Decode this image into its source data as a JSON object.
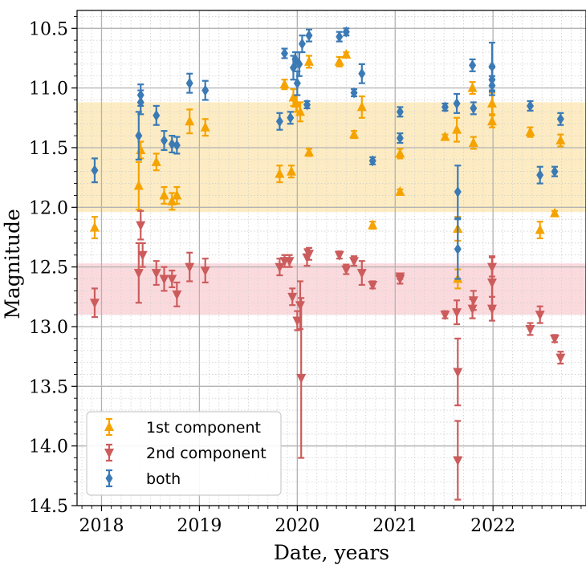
{
  "chart_data": {
    "type": "scatter",
    "xlabel": "Date, years",
    "ylabel": "Magnitude",
    "xlim": [
      2017.75,
      2022.95
    ],
    "ylim": [
      14.5,
      10.35
    ],
    "y_inverted": true,
    "x_ticks": [
      2018,
      2019,
      2020,
      2021,
      2022
    ],
    "x_tick_labels": [
      "2018",
      "2019",
      "2020",
      "2021",
      "2022"
    ],
    "y_ticks": [
      10.5,
      11.0,
      11.5,
      12.0,
      12.5,
      13.0,
      13.5,
      14.0,
      14.5
    ],
    "y_tick_labels": [
      "10.5",
      "11.0",
      "11.5",
      "12.0",
      "12.5",
      "13.0",
      "13.5",
      "14.0",
      "14.5"
    ],
    "grid": true,
    "legend_position": "lower-left",
    "bands": [
      {
        "name": "1st component range",
        "y_from": 11.12,
        "y_to": 12.04,
        "color": "#fde9b8"
      },
      {
        "name": "2nd component range",
        "y_from": 12.47,
        "y_to": 12.9,
        "color": "#fad4d8"
      }
    ],
    "series": [
      {
        "name": "1st component",
        "marker": "triangle-up",
        "color": "#f5a300",
        "points": [
          {
            "x": 2017.93,
            "y": 12.17,
            "err": 0.09
          },
          {
            "x": 2018.38,
            "y": 11.82,
            "err": 0.2
          },
          {
            "x": 2018.4,
            "y": 11.52,
            "err": 0.07
          },
          {
            "x": 2018.56,
            "y": 11.62,
            "err": 0.07
          },
          {
            "x": 2018.64,
            "y": 11.9,
            "err": 0.07
          },
          {
            "x": 2018.72,
            "y": 11.95,
            "err": 0.07
          },
          {
            "x": 2018.77,
            "y": 11.9,
            "err": 0.07
          },
          {
            "x": 2018.9,
            "y": 11.28,
            "err": 0.1
          },
          {
            "x": 2019.06,
            "y": 11.33,
            "err": 0.07
          },
          {
            "x": 2019.82,
            "y": 11.72,
            "err": 0.07
          },
          {
            "x": 2019.87,
            "y": 10.97,
            "err": 0.04
          },
          {
            "x": 2019.94,
            "y": 11.7,
            "err": 0.05
          },
          {
            "x": 2019.96,
            "y": 11.08,
            "err": 0.07
          },
          {
            "x": 2019.99,
            "y": 11.13,
            "err": 0.07
          },
          {
            "x": 2020.03,
            "y": 11.2,
            "err": 0.08
          },
          {
            "x": 2020.12,
            "y": 11.54,
            "err": 0.03
          },
          {
            "x": 2020.12,
            "y": 10.78,
            "err": 0.05
          },
          {
            "x": 2020.43,
            "y": 10.78,
            "err": 0.04
          },
          {
            "x": 2020.5,
            "y": 10.72,
            "err": 0.02
          },
          {
            "x": 2020.58,
            "y": 11.39,
            "err": 0.03
          },
          {
            "x": 2020.66,
            "y": 11.16,
            "err": 0.09
          },
          {
            "x": 2020.77,
            "y": 12.15,
            "err": 0.03
          },
          {
            "x": 2021.05,
            "y": 11.55,
            "err": 0.04
          },
          {
            "x": 2021.05,
            "y": 11.87,
            "err": 0.02
          },
          {
            "x": 2021.51,
            "y": 11.41,
            "err": 0.02
          },
          {
            "x": 2021.63,
            "y": 11.35,
            "err": 0.1
          },
          {
            "x": 2021.64,
            "y": 12.18,
            "err": 0.1
          },
          {
            "x": 2021.64,
            "y": 12.6,
            "err": 0.08
          },
          {
            "x": 2021.79,
            "y": 11.0,
            "err": 0.05
          },
          {
            "x": 2021.8,
            "y": 11.46,
            "err": 0.05
          },
          {
            "x": 2021.99,
            "y": 11.13,
            "err": 0.09
          },
          {
            "x": 2021.99,
            "y": 11.28,
            "err": 0.05
          },
          {
            "x": 2022.38,
            "y": 11.37,
            "err": 0.04
          },
          {
            "x": 2022.48,
            "y": 12.19,
            "err": 0.07
          },
          {
            "x": 2022.63,
            "y": 12.05,
            "err": 0.02
          },
          {
            "x": 2022.69,
            "y": 11.44,
            "err": 0.05
          }
        ]
      },
      {
        "name": "2nd component",
        "marker": "triangle-down",
        "color": "#cc5c5c",
        "points": [
          {
            "x": 2017.93,
            "y": 12.8,
            "err": 0.12
          },
          {
            "x": 2018.38,
            "y": 12.55,
            "err": 0.25
          },
          {
            "x": 2018.4,
            "y": 12.15,
            "err": 0.12
          },
          {
            "x": 2018.42,
            "y": 12.4,
            "err": 0.1
          },
          {
            "x": 2018.56,
            "y": 12.55,
            "err": 0.1
          },
          {
            "x": 2018.64,
            "y": 12.6,
            "err": 0.1
          },
          {
            "x": 2018.72,
            "y": 12.6,
            "err": 0.07
          },
          {
            "x": 2018.77,
            "y": 12.73,
            "err": 0.1
          },
          {
            "x": 2018.9,
            "y": 12.5,
            "err": 0.12
          },
          {
            "x": 2019.06,
            "y": 12.53,
            "err": 0.1
          },
          {
            "x": 2019.82,
            "y": 12.5,
            "err": 0.07
          },
          {
            "x": 2019.87,
            "y": 12.45,
            "err": 0.05
          },
          {
            "x": 2019.92,
            "y": 12.45,
            "err": 0.05
          },
          {
            "x": 2019.95,
            "y": 12.75,
            "err": 0.07
          },
          {
            "x": 2020.0,
            "y": 12.95,
            "err": 0.08
          },
          {
            "x": 2020.03,
            "y": 12.82,
            "err": 0.2
          },
          {
            "x": 2020.04,
            "y": 13.43,
            "err": 0.67
          },
          {
            "x": 2020.1,
            "y": 12.42,
            "err": 0.07
          },
          {
            "x": 2020.12,
            "y": 12.39,
            "err": 0.05
          },
          {
            "x": 2020.43,
            "y": 12.4,
            "err": 0.03
          },
          {
            "x": 2020.5,
            "y": 12.52,
            "err": 0.04
          },
          {
            "x": 2020.58,
            "y": 12.45,
            "err": 0.04
          },
          {
            "x": 2020.66,
            "y": 12.55,
            "err": 0.1
          },
          {
            "x": 2020.77,
            "y": 12.65,
            "err": 0.03
          },
          {
            "x": 2021.05,
            "y": 12.6,
            "err": 0.04
          },
          {
            "x": 2021.05,
            "y": 12.58,
            "err": 0.02
          },
          {
            "x": 2021.51,
            "y": 12.9,
            "err": 0.03
          },
          {
            "x": 2021.63,
            "y": 12.88,
            "err": 0.1
          },
          {
            "x": 2021.64,
            "y": 13.38,
            "err": 0.28
          },
          {
            "x": 2021.64,
            "y": 14.12,
            "err": 0.33
          },
          {
            "x": 2021.79,
            "y": 12.85,
            "err": 0.08
          },
          {
            "x": 2021.8,
            "y": 12.78,
            "err": 0.08
          },
          {
            "x": 2021.99,
            "y": 12.63,
            "err": 0.22
          },
          {
            "x": 2021.99,
            "y": 12.5,
            "err": 0.08
          },
          {
            "x": 2021.99,
            "y": 12.85,
            "err": 0.1
          },
          {
            "x": 2022.38,
            "y": 13.02,
            "err": 0.05
          },
          {
            "x": 2022.48,
            "y": 12.9,
            "err": 0.07
          },
          {
            "x": 2022.63,
            "y": 13.1,
            "err": 0.03
          },
          {
            "x": 2022.69,
            "y": 13.26,
            "err": 0.05
          }
        ]
      },
      {
        "name": "both",
        "marker": "diamond",
        "color": "#3b7ab5",
        "points": [
          {
            "x": 2017.93,
            "y": 11.69,
            "err": 0.1
          },
          {
            "x": 2018.38,
            "y": 11.4,
            "err": 0.2
          },
          {
            "x": 2018.4,
            "y": 11.06,
            "err": 0.09
          },
          {
            "x": 2018.4,
            "y": 11.12,
            "err": 0.1
          },
          {
            "x": 2018.56,
            "y": 11.23,
            "err": 0.08
          },
          {
            "x": 2018.64,
            "y": 11.44,
            "err": 0.08
          },
          {
            "x": 2018.72,
            "y": 11.47,
            "err": 0.07
          },
          {
            "x": 2018.77,
            "y": 11.48,
            "err": 0.07
          },
          {
            "x": 2018.9,
            "y": 10.96,
            "err": 0.08
          },
          {
            "x": 2019.06,
            "y": 11.02,
            "err": 0.08
          },
          {
            "x": 2019.82,
            "y": 11.28,
            "err": 0.07
          },
          {
            "x": 2019.87,
            "y": 10.71,
            "err": 0.04
          },
          {
            "x": 2019.93,
            "y": 11.25,
            "err": 0.05
          },
          {
            "x": 2019.96,
            "y": 10.83,
            "err": 0.1
          },
          {
            "x": 2019.98,
            "y": 10.76,
            "err": 0.06
          },
          {
            "x": 2020.0,
            "y": 10.96,
            "err": 0.1
          },
          {
            "x": 2020.02,
            "y": 10.8,
            "err": 0.1
          },
          {
            "x": 2020.05,
            "y": 10.63,
            "err": 0.07
          },
          {
            "x": 2020.1,
            "y": 11.14,
            "err": 0.03
          },
          {
            "x": 2020.12,
            "y": 10.56,
            "err": 0.05
          },
          {
            "x": 2020.43,
            "y": 10.57,
            "err": 0.04
          },
          {
            "x": 2020.5,
            "y": 10.53,
            "err": 0.03
          },
          {
            "x": 2020.58,
            "y": 11.04,
            "err": 0.03
          },
          {
            "x": 2020.66,
            "y": 10.88,
            "err": 0.08
          },
          {
            "x": 2020.77,
            "y": 11.61,
            "err": 0.03
          },
          {
            "x": 2021.05,
            "y": 11.42,
            "err": 0.04
          },
          {
            "x": 2021.05,
            "y": 11.2,
            "err": 0.04
          },
          {
            "x": 2021.51,
            "y": 11.16,
            "err": 0.03
          },
          {
            "x": 2021.63,
            "y": 11.13,
            "err": 0.08
          },
          {
            "x": 2021.64,
            "y": 11.87,
            "err": 0.22
          },
          {
            "x": 2021.64,
            "y": 12.35,
            "err": 0.25
          },
          {
            "x": 2021.79,
            "y": 10.81,
            "err": 0.05
          },
          {
            "x": 2021.8,
            "y": 11.17,
            "err": 0.05
          },
          {
            "x": 2021.99,
            "y": 10.82,
            "err": 0.2
          },
          {
            "x": 2021.99,
            "y": 10.93,
            "err": 0.1
          },
          {
            "x": 2021.99,
            "y": 10.98,
            "err": 0.08
          },
          {
            "x": 2022.38,
            "y": 11.15,
            "err": 0.04
          },
          {
            "x": 2022.48,
            "y": 11.73,
            "err": 0.07
          },
          {
            "x": 2022.63,
            "y": 11.7,
            "err": 0.04
          },
          {
            "x": 2022.69,
            "y": 11.26,
            "err": 0.05
          }
        ]
      }
    ]
  }
}
